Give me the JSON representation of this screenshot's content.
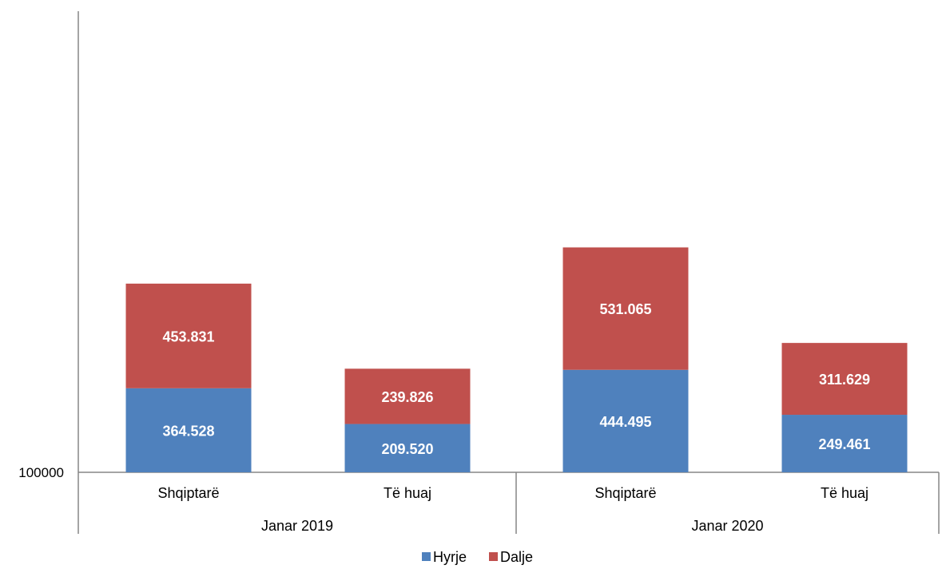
{
  "chart_data": {
    "type": "bar",
    "stacked": true,
    "groups": [
      {
        "label": "Janar 2019",
        "categories": [
          "Shqiptarë",
          "Të huaj"
        ]
      },
      {
        "label": "Janar 2020",
        "categories": [
          "Shqiptarë",
          "Të huaj"
        ]
      }
    ],
    "series": [
      {
        "name": "Hyrje",
        "color": "#4F81BD",
        "values": [
          364528,
          209520,
          444495,
          249461
        ],
        "labels": [
          "364.528",
          "209.520",
          "444.495",
          "249.461"
        ]
      },
      {
        "name": "Dalje",
        "color": "#C0504D",
        "values": [
          453831,
          239826,
          531065,
          311629
        ],
        "labels": [
          "453.831",
          "239.826",
          "531.065",
          "311.629"
        ]
      }
    ],
    "yaxis_label": "100000",
    "ylim": [
      100000,
      2100000
    ],
    "legend_position": "bottom"
  }
}
